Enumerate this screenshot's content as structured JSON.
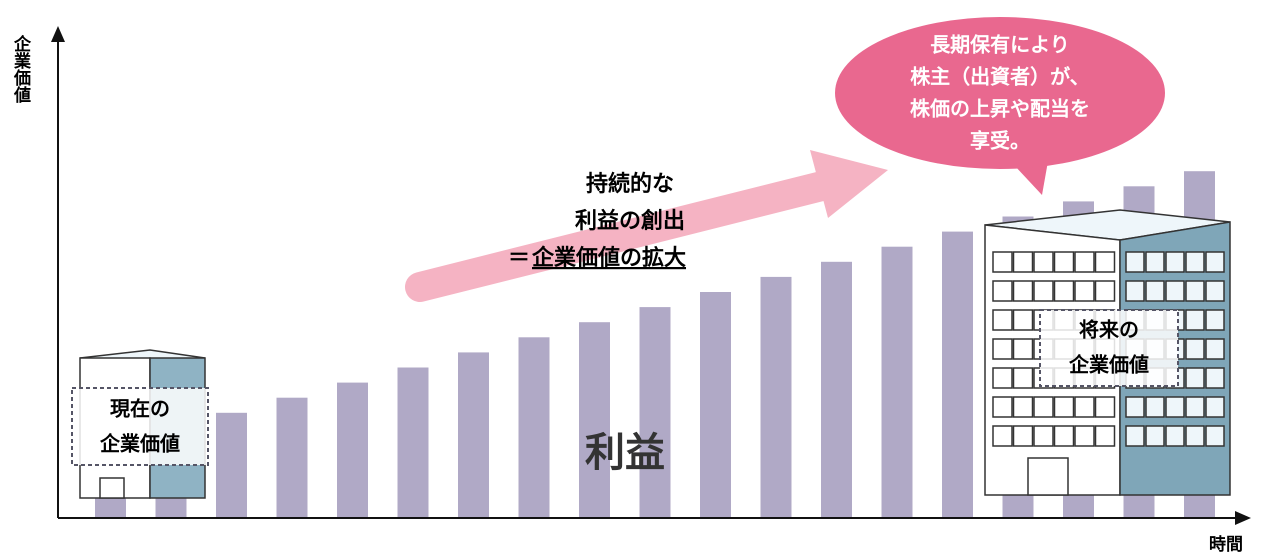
{
  "y_axis_label": "企業価値",
  "x_axis_label": "時間",
  "arrow_text": [
    "持続的な",
    "利益の創出"
  ],
  "arrow_text_prefix": "＝",
  "arrow_text_underlined": "企業価値の拡大",
  "bubble_lines": [
    "長期保有により",
    "株主（出資者）が、",
    "株価の上昇や配当を",
    "享受。"
  ],
  "bar_label": "利益",
  "current_value": [
    "現在の",
    "企業価値"
  ],
  "future_value": [
    "将来の",
    "企業価値"
  ]
}
